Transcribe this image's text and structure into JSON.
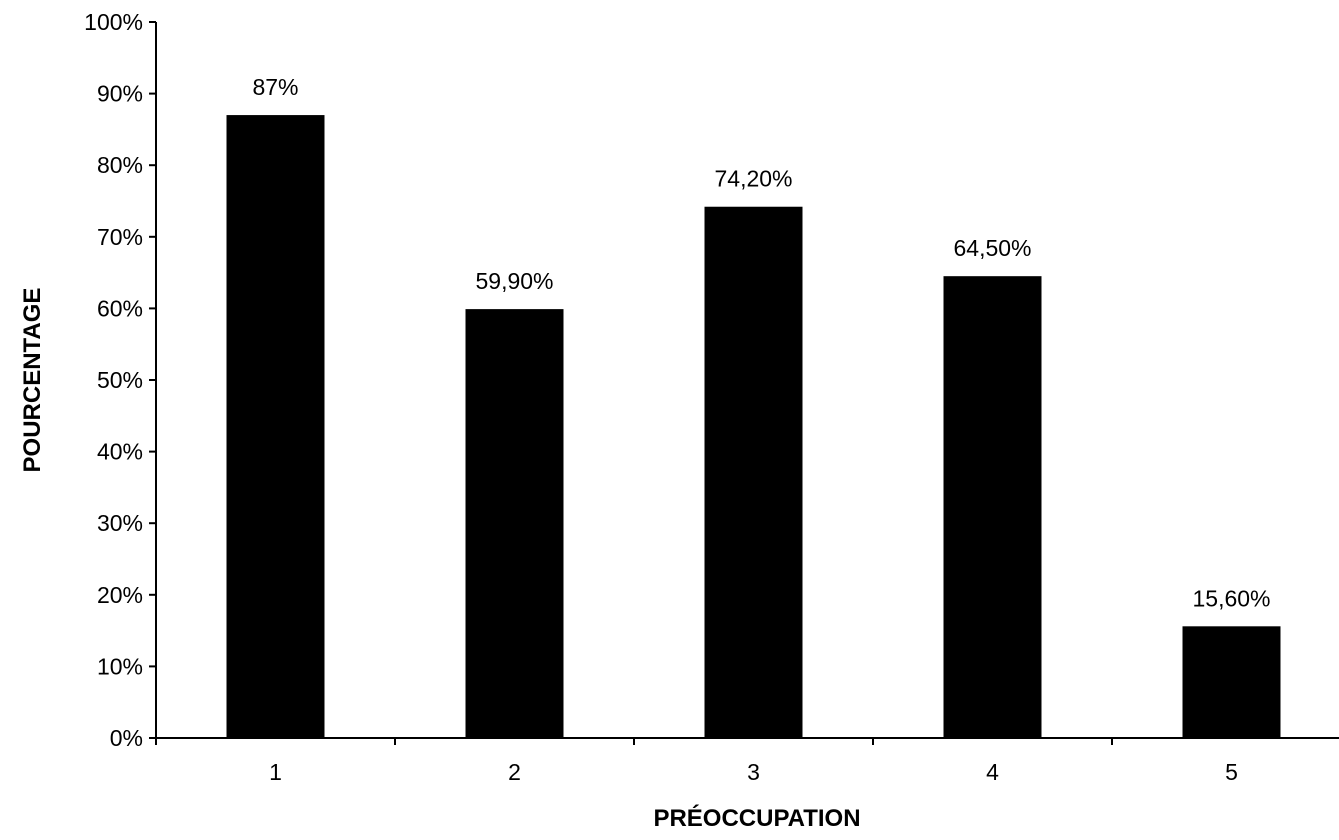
{
  "chart_data": {
    "type": "bar",
    "title": "",
    "xlabel": "PRÉOCCUPATION",
    "ylabel": "POURCENTAGE",
    "categories": [
      "1",
      "2",
      "3",
      "4",
      "5"
    ],
    "values": [
      87,
      59.9,
      74.2,
      64.5,
      15.6
    ],
    "data_labels": [
      "87%",
      "59,90%",
      "74,20%",
      "64,50%",
      "15,60%"
    ],
    "ylim": [
      0,
      100
    ],
    "y_ticks": [
      0,
      10,
      20,
      30,
      40,
      50,
      60,
      70,
      80,
      90,
      100
    ],
    "y_tick_labels": [
      "0%",
      "10%",
      "20%",
      "30%",
      "40%",
      "50%",
      "60%",
      "70%",
      "80%",
      "90%",
      "100%"
    ],
    "grid": false,
    "legend": "none",
    "bar_color": "#000000",
    "axis_color": "#000000"
  }
}
